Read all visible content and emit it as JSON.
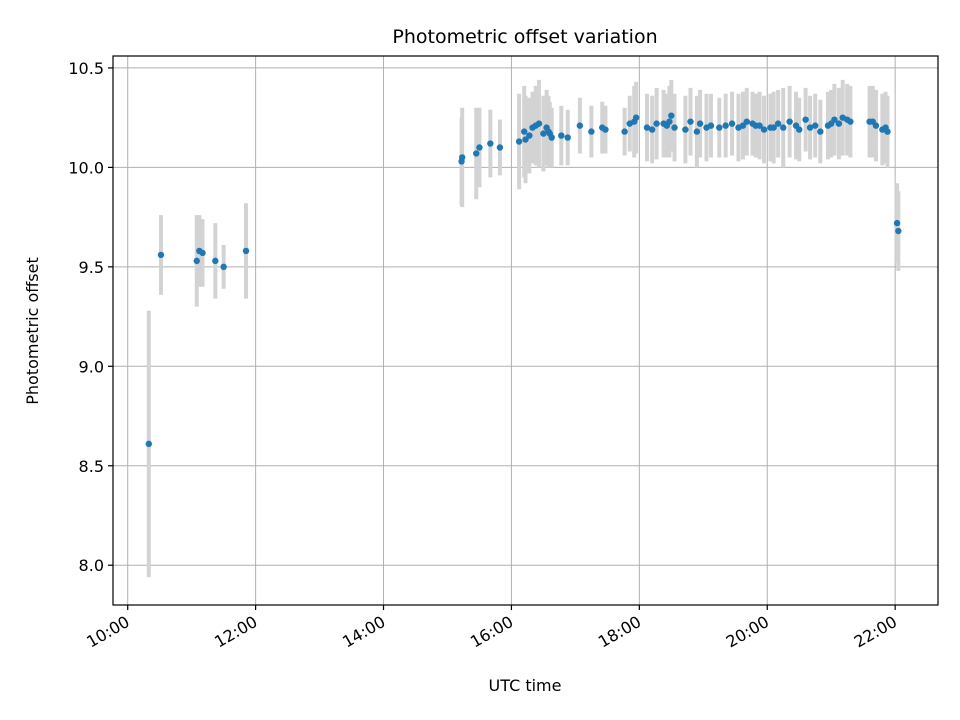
{
  "chart_data": {
    "type": "scatter",
    "title": "Photometric offset variation",
    "xlabel": "UTC time",
    "ylabel": "Photometric offset",
    "x_unit": "hours UTC",
    "xlim": [
      9.77,
      22.67
    ],
    "ylim": [
      7.8,
      10.56
    ],
    "xticks": [
      10,
      12,
      14,
      16,
      18,
      20,
      22
    ],
    "xtick_labels": [
      "10:00",
      "12:00",
      "14:00",
      "16:00",
      "18:00",
      "20:00",
      "22:00"
    ],
    "yticks": [
      8.0,
      8.5,
      9.0,
      9.5,
      10.0,
      10.5
    ],
    "ytick_labels": [
      "8.0",
      "8.5",
      "9.0",
      "9.5",
      "10.0",
      "10.5"
    ],
    "grid": true,
    "colors": {
      "points": "#1f77b4",
      "errorbars": "#d3d3d3",
      "grid": "#b0b0b0"
    },
    "series": [
      {
        "x": [
          10.33,
          10.52,
          11.08,
          11.12,
          11.17,
          11.37,
          11.5,
          11.85,
          15.22,
          15.23,
          15.45,
          15.5,
          15.67,
          15.82,
          16.12,
          16.2,
          16.22,
          16.28,
          16.33,
          16.38,
          16.43,
          16.5,
          16.55,
          16.58,
          16.6,
          16.63,
          16.78,
          16.88,
          17.07,
          17.25,
          17.42,
          17.47,
          17.77,
          17.85,
          17.92,
          17.95,
          18.12,
          18.2,
          18.27,
          18.38,
          18.43,
          18.47,
          18.5,
          18.55,
          18.72,
          18.8,
          18.9,
          18.95,
          19.05,
          19.12,
          19.25,
          19.35,
          19.45,
          19.55,
          19.62,
          19.68,
          19.77,
          19.82,
          19.88,
          19.95,
          20.05,
          20.1,
          20.17,
          20.25,
          20.35,
          20.45,
          20.5,
          20.6,
          20.67,
          20.75,
          20.83,
          20.95,
          21.0,
          21.05,
          21.12,
          21.18,
          21.25,
          21.3,
          21.6,
          21.65,
          21.7,
          21.8,
          21.85,
          21.88,
          22.03,
          22.05
        ],
        "y": [
          8.61,
          9.56,
          9.53,
          9.58,
          9.57,
          9.53,
          9.5,
          9.58,
          10.03,
          10.05,
          10.07,
          10.1,
          10.12,
          10.1,
          10.13,
          10.18,
          10.14,
          10.16,
          10.2,
          10.21,
          10.22,
          10.17,
          10.2,
          10.18,
          10.17,
          10.15,
          10.16,
          10.15,
          10.21,
          10.18,
          10.2,
          10.19,
          10.18,
          10.22,
          10.23,
          10.25,
          10.2,
          10.19,
          10.22,
          10.22,
          10.21,
          10.23,
          10.26,
          10.2,
          10.19,
          10.23,
          10.18,
          10.22,
          10.2,
          10.21,
          10.2,
          10.21,
          10.22,
          10.2,
          10.21,
          10.23,
          10.22,
          10.21,
          10.21,
          10.19,
          10.2,
          10.2,
          10.22,
          10.2,
          10.23,
          10.21,
          10.19,
          10.24,
          10.2,
          10.21,
          10.18,
          10.21,
          10.22,
          10.24,
          10.22,
          10.25,
          10.24,
          10.23,
          10.23,
          10.23,
          10.21,
          10.19,
          10.2,
          10.18,
          9.72,
          9.68
        ],
        "yerr": [
          0.67,
          0.2,
          0.23,
          0.18,
          0.17,
          0.19,
          0.11,
          0.24,
          0.22,
          0.25,
          0.23,
          0.2,
          0.17,
          0.14,
          0.24,
          0.23,
          0.22,
          0.19,
          0.18,
          0.2,
          0.22,
          0.19,
          0.19,
          0.18,
          0.16,
          0.15,
          0.15,
          0.14,
          0.14,
          0.13,
          0.13,
          0.12,
          0.12,
          0.14,
          0.18,
          0.18,
          0.17,
          0.17,
          0.18,
          0.17,
          0.16,
          0.18,
          0.18,
          0.17,
          0.17,
          0.17,
          0.18,
          0.17,
          0.17,
          0.16,
          0.15,
          0.16,
          0.16,
          0.17,
          0.17,
          0.17,
          0.16,
          0.16,
          0.17,
          0.17,
          0.17,
          0.18,
          0.17,
          0.2,
          0.18,
          0.17,
          0.16,
          0.16,
          0.16,
          0.16,
          0.16,
          0.17,
          0.17,
          0.18,
          0.18,
          0.19,
          0.18,
          0.18,
          0.18,
          0.18,
          0.18,
          0.18,
          0.18,
          0.18,
          0.2,
          0.2
        ]
      }
    ]
  }
}
